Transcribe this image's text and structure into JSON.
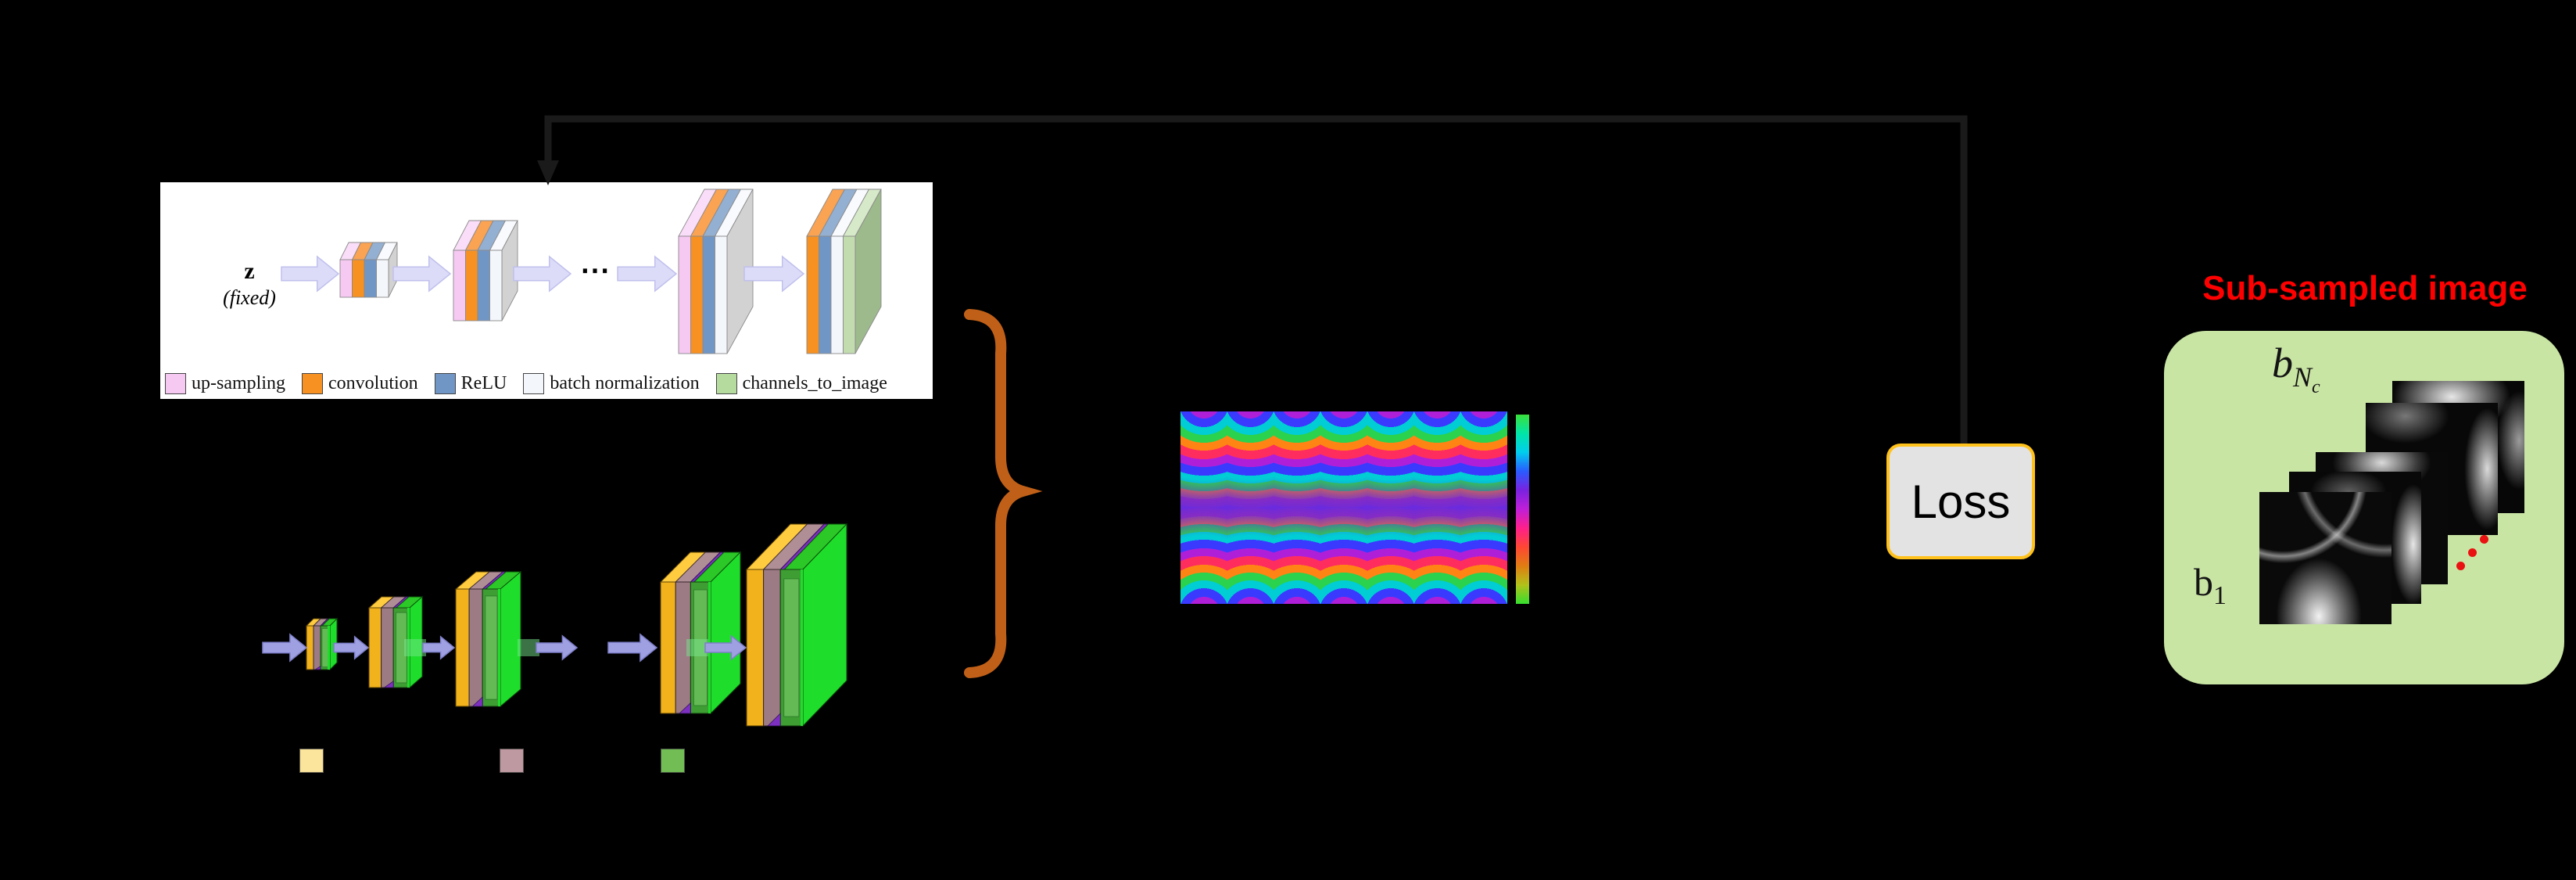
{
  "colors": {
    "background": "#000000",
    "feedback_arrow": "#1A1A1A",
    "decoder_pink": "#F6C9F3",
    "decoder_pink_top": "#FADDF8",
    "decoder_orange": "#F79122",
    "decoder_orange_top": "#FAA352",
    "decoder_blue": "#7096C6",
    "decoder_blue_top": "#93AFD2",
    "decoder_white": "#F3F6FB",
    "decoder_white_top": "#F8FAFE",
    "decoder_gray_side": "#D2D2D2",
    "decoder_gray_top": "#DCDCDC",
    "decoder_green": "#C2DCAF",
    "decoder_green_top": "#D6E9C8",
    "decoder_green_side": "#9DBA8C",
    "decoder_arrow": "#DCDCF8",
    "decoder_arrow_border": "#C0C0EE",
    "encoder_yellow": "#F2B21C",
    "encoder_yellow_top": "#FFCB3F",
    "encoder_mauve": "#9C7B84",
    "encoder_mauve_top": "#B08E96",
    "encoder_purple": "#7D2FC0",
    "encoder_green": "#3E9E33",
    "encoder_green_top": "#2BC827",
    "encoder_green_bright": "#1FDE2B",
    "encoder_arrow": "#9FA0E2",
    "encoder_arrow_border": "#7E7FC9",
    "encoder_arrow_tail": "rgba(120,230,140,0.5)",
    "brace": "#C06018",
    "loss_border": "#FFC21C",
    "loss_bg": "#E3E3E3",
    "subsampled_title": "#FF0000",
    "subsampled_panel": "#C9E5A4",
    "ellipsis_red": "#E91111",
    "white_panel": "#FFFFFF"
  },
  "decoder_panel": {
    "input_label": "z",
    "input_sublabel": "(fixed)",
    "dots": "⋯",
    "legend": [
      {
        "label": "up-sampling",
        "color": "#F6C9F3"
      },
      {
        "label": "convolution",
        "color": "#F79122"
      },
      {
        "label": "ReLU",
        "color": "#7096C6"
      },
      {
        "label": "batch normalization",
        "color": "#F3F6FB"
      },
      {
        "label": "channels_to_image",
        "color": "#B5DC9E"
      }
    ]
  },
  "encoder_legend_swatches": [
    {
      "name": "yellow-swatch",
      "color": "#FBE49B"
    },
    {
      "name": "mauve-swatch",
      "color": "#BF99A1"
    },
    {
      "name": "green-swatch",
      "color": "#72BE55"
    }
  ],
  "loss": {
    "label": "Loss"
  },
  "subsampled": {
    "title": "Sub-sampled image",
    "back_label_base": "b",
    "back_label_sub": "N",
    "back_label_subsub": "c",
    "front_label_base": "b",
    "front_label_sub": "1"
  },
  "colorbar_stops": [
    "#3AE03A",
    "#00E6A8",
    "#00CDEE",
    "#2A5BFF",
    "#7A22E0",
    "#C01FD8",
    "#FF1F8A",
    "#FF4733",
    "#E07D12",
    "#B2C21A",
    "#35DF2F"
  ]
}
